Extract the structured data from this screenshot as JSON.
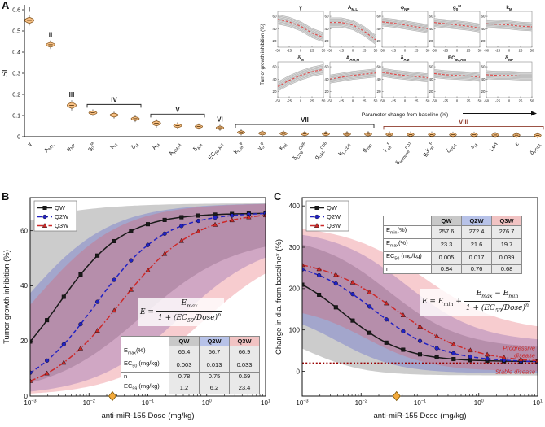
{
  "chart_data": [
    {
      "id": "A",
      "type": "violin",
      "letter": "A",
      "ylabel": "SI",
      "ylim": [
        0,
        0.6
      ],
      "yticks": [
        0,
        0.1,
        0.2,
        0.3,
        0.4,
        0.5,
        0.6
      ],
      "violin_fill": "#f7c084",
      "violin_edge": "#7a4a12",
      "items": [
        {
          "label": "γ",
          "value": 0.55,
          "spread": 0.012
        },
        {
          "label": "A_{M,L}",
          "value": 0.435,
          "spread": 0.01
        },
        {
          "label": "φ_{NP}",
          "value": 0.148,
          "spread": 0.012
        },
        {
          "label": "g_{0}^{M}",
          "value": 0.113,
          "spread": 0.008
        },
        {
          "label": "k_{M}",
          "value": 0.102,
          "spread": 0.008
        },
        {
          "label": "δ_{M}",
          "value": 0.085,
          "spread": 0.008
        },
        {
          "label": "A_{M}",
          "value": 0.063,
          "spread": 0.01
        },
        {
          "label": "A_{AM,M}",
          "value": 0.052,
          "spread": 0.008
        },
        {
          "label": "δ_{AM}",
          "value": 0.048,
          "spread": 0.006
        },
        {
          "label": "EC_{50,AM}",
          "value": 0.042,
          "spread": 0.006
        },
        {
          "label": "k_{L,M}^{φ}",
          "value": 0.02,
          "spread": 0.005
        },
        {
          "label": "γ_{0}^{φ}",
          "value": 0.016,
          "spread": 0.004
        },
        {
          "label": "k_{rel}",
          "value": 0.015,
          "spread": 0.004
        },
        {
          "label": "δ_{CD8}^{CDR}",
          "value": 0.013,
          "spread": 0.004
        },
        {
          "label": "g_{0,kL}^{CD8}",
          "value": 0.013,
          "spread": 0.004
        },
        {
          "label": "k_{L,CD8}",
          "value": 0.012,
          "spread": 0.004
        },
        {
          "label": "g_{tran}",
          "value": 0.012,
          "spread": 0.004
        },
        {
          "label": "k_{off}^{P}",
          "value": 0.011,
          "spread": 0.003
        },
        {
          "label": "δ_{immune}^{PD1}",
          "value": 0.01,
          "spread": 0.003
        },
        {
          "label": "g_{0}k_{on}^{P}",
          "value": 0.01,
          "spread": 0.003
        },
        {
          "label": "δ_{PD1}",
          "value": 0.009,
          "spread": 0.003
        },
        {
          "label": "ε_{M}",
          "value": 0.009,
          "spread": 0.003
        },
        {
          "label": "Len",
          "value": 0.008,
          "spread": 0.003
        },
        {
          "label": "ε",
          "value": 0.007,
          "spread": 0.003
        },
        {
          "label": "δ_{PDL1}",
          "value": 0.006,
          "spread": 0.003
        }
      ],
      "groups": [
        {
          "label": "I",
          "from": 0,
          "to": 0,
          "color": "#222222"
        },
        {
          "label": "II",
          "from": 1,
          "to": 1,
          "color": "#222222"
        },
        {
          "label": "III",
          "from": 2,
          "to": 2,
          "color": "#222222"
        },
        {
          "label": "IV",
          "from": 3,
          "to": 5,
          "color": "#222222"
        },
        {
          "label": "V",
          "from": 6,
          "to": 8,
          "color": "#222222"
        },
        {
          "label": "VI",
          "from": 9,
          "to": 9,
          "color": "#222222"
        },
        {
          "label": "VII",
          "from": 10,
          "to": 16,
          "color": "#222222"
        },
        {
          "label": "VIII",
          "from": 17,
          "to": 24,
          "color": "#8f3b2c"
        }
      ],
      "inset": {
        "ylabel": "Tumor growth inhibition (%)",
        "xlabel": "Parameter change from baseline (%)",
        "x": [
          -50,
          -25,
          0,
          25,
          50
        ],
        "xtick_labels": [
          "-50",
          "-25",
          "0",
          "25",
          "50"
        ],
        "yticks": [
          20,
          40,
          60
        ],
        "ylim": [
          10,
          68
        ],
        "line_color": "#e04040",
        "plots": [
          {
            "title": "γ",
            "mean": [
              55,
              51,
              44,
              33,
              26
            ],
            "band": 8
          },
          {
            "title": "A_{M,L}",
            "mean": [
              50,
              50,
              46,
              36,
              22
            ],
            "band": 8
          },
          {
            "title": "φ_{NP}",
            "mean": [
              51,
              49,
              46,
              43,
              40
            ],
            "band": 7
          },
          {
            "title": "g_{0}^{M}",
            "mean": [
              50,
              48,
              46,
              44,
              41
            ],
            "band": 7
          },
          {
            "title": "k_{M}",
            "mean": [
              48,
              47,
              46,
              44,
              43
            ],
            "band": 7
          },
          {
            "title": "δ_{M}",
            "mean": [
              28,
              38,
              46,
              52,
              56
            ],
            "band": 8
          },
          {
            "title": "A_{AM,M}",
            "mean": [
              40,
              43,
              46,
              48,
              50
            ],
            "band": 7
          },
          {
            "title": "δ_{AM}",
            "mean": [
              51,
              48,
              46,
              44,
              42
            ],
            "band": 7
          },
          {
            "title": "EC_{50,AM}",
            "mean": [
              49,
              47,
              46,
              45,
              43
            ],
            "band": 7
          },
          {
            "title": "δ_{NP}",
            "mean": [
              47,
              46,
              46,
              45,
              45
            ],
            "band": 7
          }
        ]
      }
    },
    {
      "id": "B",
      "type": "line",
      "letter": "B",
      "xlabel": "anti-miR-155 Dose (mg/kg)",
      "ylabel": "Tumor growth inhibition (%)",
      "xlim_exp": [
        -3,
        1
      ],
      "ylim": [
        0,
        72
      ],
      "yticks": [
        0,
        20,
        40,
        60
      ],
      "series": [
        {
          "name": "QW",
          "color": "#1a1a1a",
          "band_color": "rgba(128,128,128,0.40)",
          "marker": "square",
          "dash": "",
          "hill": {
            "e0": 0,
            "einf": 66.4,
            "ec50": 0.003,
            "n": 0.78
          },
          "band_hi": {
            "e0": 0,
            "einf": 70,
            "ec50": 1e-05,
            "n": 0.5
          },
          "band_lo": {
            "e0": 0,
            "einf": 58,
            "ec50": 0.08,
            "n": 0.55
          }
        },
        {
          "name": "Q2W",
          "color": "#2222c2",
          "band_color": "rgba(70,80,205,0.30)",
          "marker": "circle",
          "dash": "5,3",
          "hill": {
            "e0": 0,
            "einf": 66.7,
            "ec50": 0.013,
            "n": 0.75
          },
          "band_hi": {
            "e0": 0,
            "einf": 70,
            "ec50": 0.0008,
            "n": 0.6
          },
          "band_lo": {
            "e0": 0,
            "einf": 57,
            "ec50": 0.35,
            "n": 0.6
          }
        },
        {
          "name": "Q3W",
          "color": "#cc2a2a",
          "band_color": "rgba(228,85,95,0.30)",
          "marker": "triangle",
          "dash": "7,2.5,1.5,2.5",
          "hill": {
            "e0": 0,
            "einf": 66.9,
            "ec50": 0.033,
            "n": 0.69
          },
          "band_hi": {
            "e0": 0,
            "einf": 70,
            "ec50": 0.0012,
            "n": 0.6
          },
          "band_lo": {
            "e0": 0,
            "einf": 55,
            "ec50": 0.9,
            "n": 0.6
          }
        }
      ],
      "equation": {
        "lhs": "E =",
        "num": "E<sub>max</sub>",
        "den": "1 + (EC<sub>50</sub>/Dose)<sup>n</sup>"
      },
      "table": {
        "headers": [
          "",
          "QW",
          "Q2W",
          "Q3W"
        ],
        "header_colors": [
          "#ffffff",
          "#c8c8c8",
          "#b7c2e8",
          "#f1c3c3"
        ],
        "rows": [
          {
            "label": "E<sub>max</sub>(%)",
            "values": [
              "66.4",
              "66.7",
              "66.9"
            ]
          },
          {
            "label": "EC<sub>50</sub> (mg/kg)",
            "values": [
              "0.003",
              "0.013",
              "0.033"
            ]
          },
          {
            "label": "n",
            "values": [
              "0.78",
              "0.75",
              "0.69"
            ]
          },
          {
            "label": "EC<sub>99</sub> (mg/kg)",
            "values": [
              "1.2",
              "6.2",
              "23.4"
            ]
          }
        ]
      },
      "diamond": {
        "dose": 0.025,
        "color": "#f2a93b"
      }
    },
    {
      "id": "C",
      "type": "line",
      "letter": "C",
      "xlabel": "anti-miR-155 Dose (mg/kg)",
      "ylabel": "Change in dia. from baseline* (%)",
      "xlim_exp": [
        -3,
        1
      ],
      "ylim": [
        -60,
        420
      ],
      "yticks": [
        0,
        100,
        200,
        300,
        400
      ],
      "series": [
        {
          "name": "QW",
          "color": "#1a1a1a",
          "band_color": "rgba(128,128,128,0.40)",
          "marker": "square",
          "dash": "",
          "hill": {
            "e0": 257.6,
            "einf": 23.3,
            "ec50": 0.005,
            "n": 0.84
          },
          "band_hi": {
            "e0": 330,
            "einf": 55,
            "ec50": 0.03,
            "n": 0.7
          },
          "band_lo": {
            "e0": 110,
            "einf": -10,
            "ec50": 0.0012,
            "n": 0.9
          }
        },
        {
          "name": "Q2W",
          "color": "#2222c2",
          "band_color": "rgba(70,80,205,0.30)",
          "marker": "circle",
          "dash": "5,3",
          "hill": {
            "e0": 272.4,
            "einf": 21.6,
            "ec50": 0.017,
            "n": 0.76
          },
          "band_hi": {
            "e0": 345,
            "einf": 70,
            "ec50": 0.06,
            "n": 0.7
          },
          "band_lo": {
            "e0": 150,
            "einf": -5,
            "ec50": 0.004,
            "n": 0.85
          }
        },
        {
          "name": "Q3W",
          "color": "#cc2a2a",
          "band_color": "rgba(228,85,95,0.30)",
          "marker": "triangle",
          "dash": "7,2.5,1.5,2.5",
          "hill": {
            "e0": 276.7,
            "einf": 19.7,
            "ec50": 0.039,
            "n": 0.68
          },
          "band_hi": {
            "e0": 355,
            "einf": 95,
            "ec50": 0.12,
            "n": 0.65
          },
          "band_lo": {
            "e0": 160,
            "einf": 0,
            "ec50": 0.012,
            "n": 0.8
          }
        }
      ],
      "equation": {
        "lhs": "E = E<sub>min</sub> +",
        "num": "E<sub>max</sub> − E<sub>min</sub>",
        "den": "1 + (EC<sub>50</sub>/Dose)<sup>n</sup>"
      },
      "table": {
        "headers": [
          "",
          "QW",
          "Q2W",
          "Q3W"
        ],
        "header_colors": [
          "#ffffff",
          "#c8c8c8",
          "#b7c2e8",
          "#f1c3c3"
        ],
        "rows": [
          {
            "label": "E<sub>min</sub>(%)",
            "values": [
              "257.6",
              "272.4",
              "276.7"
            ]
          },
          {
            "label": "E<sub>max</sub>(%)",
            "values": [
              "23.3",
              "21.6",
              "19.7"
            ]
          },
          {
            "label": "EC<sub>50</sub> (mg/kg)",
            "values": [
              "0.005",
              "0.017",
              "0.039"
            ]
          },
          {
            "label": "n",
            "values": [
              "0.84",
              "0.76",
              "0.68"
            ]
          }
        ]
      },
      "threshold": {
        "y": 20,
        "color": "#990000"
      },
      "annotations": [
        {
          "lines": [
            "Progressive",
            "disease"
          ],
          "color": "#cc2222"
        },
        {
          "lines": [
            "Stable disease"
          ],
          "color": "#cc2222"
        }
      ],
      "diamond": {
        "dose": 0.04,
        "color": "#f2a93b"
      }
    }
  ]
}
